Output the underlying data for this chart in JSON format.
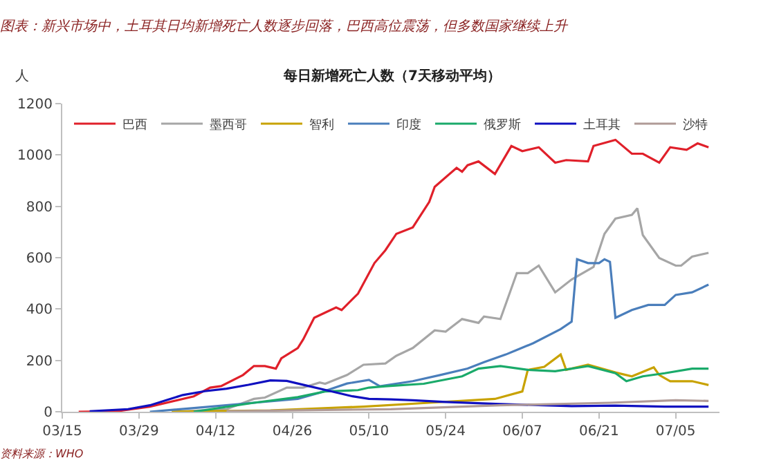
{
  "chart_data": {
    "type": "line",
    "title": "图表：新兴市场中，土耳其日均新增死亡人数逐步回落，巴西高位震荡，但多数国家继续上升",
    "subtitle": "每日新增死亡人数（7天移动平均）",
    "ylabel": "人",
    "annotations": [
      "资料来源：WHO"
    ],
    "series": [
      {
        "name": "巴西",
        "color": "#e0202a",
        "x": [
          "--03-18",
          "--03-25",
          "--03-31",
          "--04-08",
          "--04-11",
          "--04-13",
          "--04-17",
          "--04-19",
          "--04-21",
          "--04-23",
          "--04-24",
          "--04-27",
          "--04-28",
          "--04-30",
          "--05-02",
          "--05-04",
          "--05-05",
          "--05-08",
          "--05-11",
          "--05-13",
          "--05-15",
          "--05-18",
          "--05-21",
          "--05-22",
          "--05-26",
          "--05-27",
          "--05-28",
          "--05-30",
          "--06-02",
          "--06-05",
          "--06-07",
          "--06-10",
          "--06-13",
          "--06-15",
          "--06-19",
          "--06-20",
          "--06-24",
          "--06-27",
          "--06-29",
          "--07-02",
          "--07-04",
          "--07-07",
          "--07-09",
          "--07-11"
        ],
        "values": [
          0,
          2,
          20,
          60,
          94,
          100,
          143,
          178,
          178,
          168,
          208,
          248,
          282,
          366,
          386,
          406,
          396,
          460,
          579,
          629,
          693,
          718,
          817,
          876,
          950,
          935,
          960,
          975,
          926,
          1035,
          1015,
          1030,
          970,
          980,
          975,
          1035,
          1059,
          1005,
          1005,
          970,
          1030,
          1020,
          1045,
          1030
        ]
      },
      {
        "name": "墨西哥",
        "color": "#a6a6a6",
        "x": [
          "--04-04",
          "--04-14",
          "--04-19",
          "--04-21",
          "--04-25",
          "--04-28",
          "--05-01",
          "--05-02",
          "--05-06",
          "--05-09",
          "--05-13",
          "--05-15",
          "--05-18",
          "--05-22",
          "--05-24",
          "--05-27",
          "--05-30",
          "--05-31",
          "--06-03",
          "--06-06",
          "--06-08",
          "--06-10",
          "--06-13",
          "--06-16",
          "--06-20",
          "--06-22",
          "--06-24",
          "--06-27",
          "--06-28",
          "--06-29",
          "--07-02",
          "--07-05",
          "--07-06",
          "--07-08",
          "--07-11"
        ],
        "values": [
          0,
          10,
          50,
          55,
          94,
          94,
          114,
          109,
          143,
          183,
          188,
          218,
          248,
          317,
          312,
          361,
          346,
          371,
          361,
          540,
          540,
          569,
          465,
          515,
          564,
          693,
          752,
          767,
          792,
          688,
          599,
          569,
          569,
          604,
          619
        ]
      },
      {
        "name": "智利",
        "color": "#c8a200",
        "x": [
          "--04-04",
          "--04-22",
          "--05-09",
          "--05-21",
          "--06-02",
          "--06-07",
          "--06-08",
          "--06-11",
          "--06-14",
          "--06-15",
          "--06-19",
          "--06-24",
          "--06-27",
          "--07-01",
          "--07-02",
          "--07-04",
          "--07-08",
          "--07-11"
        ],
        "values": [
          0,
          5,
          20,
          35,
          50,
          79,
          163,
          175,
          223,
          163,
          183,
          153,
          138,
          173,
          143,
          119,
          119,
          104
        ]
      },
      {
        "name": "印度",
        "color": "#4a7ebb",
        "x": [
          "--03-31",
          "--04-11",
          "--04-19",
          "--04-27",
          "--05-01",
          "--05-06",
          "--05-10",
          "--05-12",
          "--05-18",
          "--05-23",
          "--05-28",
          "--05-31",
          "--06-04",
          "--06-09",
          "--06-14",
          "--06-16",
          "--06-17",
          "--06-19",
          "--06-21",
          "--06-22",
          "--06-23",
          "--06-24",
          "--06-27",
          "--06-30",
          "--07-03",
          "--07-05",
          "--07-08",
          "--07-11"
        ],
        "values": [
          0,
          20,
          35,
          50,
          74,
          110,
          124,
          99,
          119,
          143,
          168,
          193,
          223,
          267,
          322,
          351,
          594,
          579,
          579,
          594,
          584,
          366,
          396,
          416,
          416,
          455,
          465,
          495
        ]
      },
      {
        "name": "俄罗斯",
        "color": "#1aaa6a",
        "x": [
          "--04-08",
          "--04-19",
          "--04-27",
          "--05-02",
          "--05-08",
          "--05-10",
          "--05-13",
          "--05-20",
          "--05-27",
          "--05-30",
          "--06-03",
          "--06-08",
          "--06-13",
          "--06-19",
          "--06-24",
          "--06-26",
          "--06-29",
          "--07-03",
          "--07-08",
          "--07-11"
        ],
        "values": [
          0,
          35,
          57,
          79,
          84,
          94,
          99,
          109,
          138,
          168,
          178,
          163,
          158,
          178,
          150,
          119,
          138,
          150,
          168,
          168
        ]
      },
      {
        "name": "土耳其",
        "color": "#1010c0",
        "x": [
          "--03-20",
          "--03-27",
          "--03-31",
          "--04-03",
          "--04-06",
          "--04-10",
          "--04-14",
          "--04-18",
          "--04-22",
          "--04-25",
          "--04-29",
          "--05-03",
          "--05-07",
          "--05-10",
          "--05-14",
          "--05-18",
          "--05-24",
          "--06-03",
          "--06-16",
          "--06-24",
          "--07-03",
          "--07-11"
        ],
        "values": [
          2,
          10,
          25,
          45,
          65,
          80,
          90,
          105,
          122,
          120,
          100,
          80,
          60,
          50,
          48,
          45,
          38,
          30,
          22,
          24,
          20,
          20
        ]
      },
      {
        "name": "沙特",
        "color": "#b09a96",
        "x": [
          "--04-14",
          "--05-14",
          "--06-03",
          "--06-23",
          "--07-05",
          "--07-11"
        ],
        "values": [
          2,
          10,
          25,
          35,
          45,
          42
        ]
      }
    ],
    "xlim": [
      "--03-15",
      "--07-13"
    ],
    "xticks": [
      {
        "value": "--03-15",
        "label": "03/15"
      },
      {
        "value": "--03-29",
        "label": "03/29"
      },
      {
        "value": "--04-12",
        "label": "04/12"
      },
      {
        "value": "--04-26",
        "label": "04/26"
      },
      {
        "value": "--05-10",
        "label": "05/10"
      },
      {
        "value": "--05-24",
        "label": "05/24"
      },
      {
        "value": "--06-07",
        "label": "06/07"
      },
      {
        "value": "--06-21",
        "label": "06/21"
      },
      {
        "value": "--07-05",
        "label": "07/05"
      }
    ],
    "ylim": [
      0,
      1200
    ],
    "yticks": [
      0,
      200,
      400,
      600,
      800,
      1000,
      1200
    ],
    "legend": "top",
    "line_style": "solid",
    "marker": "none"
  }
}
